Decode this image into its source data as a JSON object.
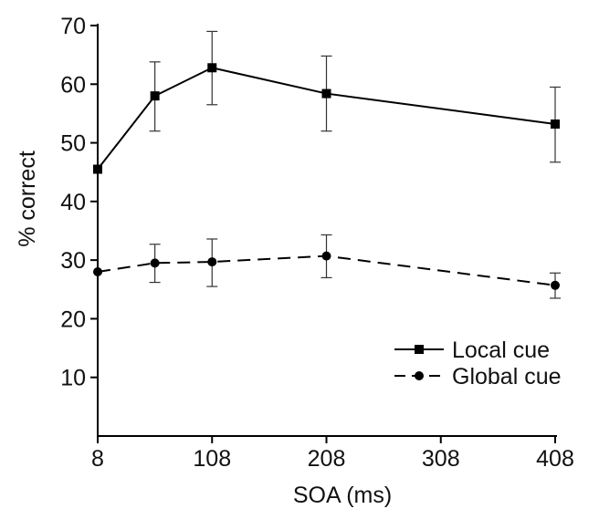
{
  "chart_data": {
    "type": "line",
    "xlabel": "SOA (ms)",
    "ylabel": "% correct",
    "xlim": [
      8,
      408
    ],
    "ylim": [
      0,
      70
    ],
    "xticks": [
      8,
      108,
      208,
      308,
      408
    ],
    "xtick_labels": [
      "8",
      "108",
      "208",
      "308",
      "408"
    ],
    "yticks": [
      10,
      20,
      30,
      40,
      50,
      60,
      70
    ],
    "ytick_labels": [
      "10",
      "20",
      "30",
      "40",
      "50",
      "60",
      "70"
    ],
    "grid": false,
    "legend_position": "bottom-right",
    "series": [
      {
        "name": "Local cue",
        "line_style": "solid",
        "marker": "square",
        "color": "#000000",
        "x": [
          8,
          58,
          108,
          208,
          408
        ],
        "y": [
          45.5,
          58.0,
          62.8,
          58.4,
          53.2
        ],
        "err_low": [
          45.5,
          52.0,
          56.5,
          52.0,
          46.7
        ],
        "err_high": [
          45.5,
          63.8,
          69.0,
          64.8,
          59.5
        ]
      },
      {
        "name": "Global cue",
        "line_style": "dashed",
        "marker": "circle",
        "color": "#000000",
        "x": [
          8,
          58,
          108,
          208,
          408
        ],
        "y": [
          28.0,
          29.5,
          29.7,
          30.7,
          25.7
        ],
        "err_low": [
          28.0,
          26.2,
          25.5,
          27.0,
          23.5
        ],
        "err_high": [
          28.0,
          32.7,
          33.6,
          34.3,
          27.8
        ]
      }
    ]
  }
}
